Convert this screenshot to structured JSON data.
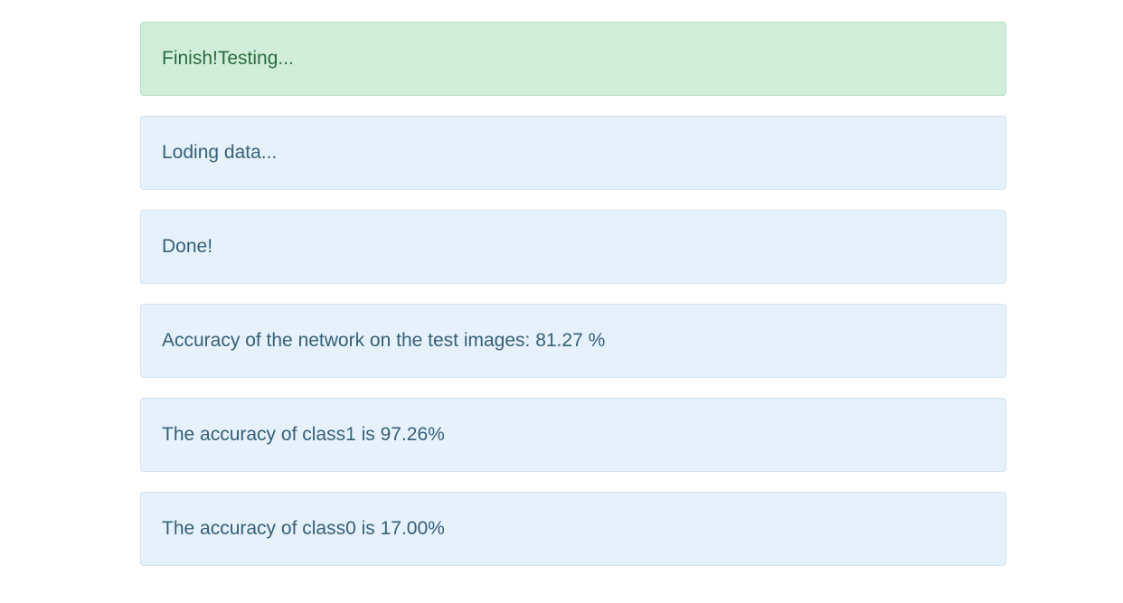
{
  "alerts": [
    {
      "text": "Finish!Testing...",
      "variant": "success"
    },
    {
      "text": "Loding data...",
      "variant": "info"
    },
    {
      "text": "Done!",
      "variant": "info"
    },
    {
      "text": "Accuracy of the network on the test images: 81.27 %",
      "variant": "info"
    },
    {
      "text": "The accuracy of class1 is 97.26%",
      "variant": "info"
    },
    {
      "text": "The accuracy of class0 is 17.00%",
      "variant": "info"
    }
  ],
  "colors": {
    "success_bg": "#d0eed9",
    "success_text": "#2b6b3f",
    "info_bg": "#e6f1fb",
    "info_text": "#35607a"
  }
}
